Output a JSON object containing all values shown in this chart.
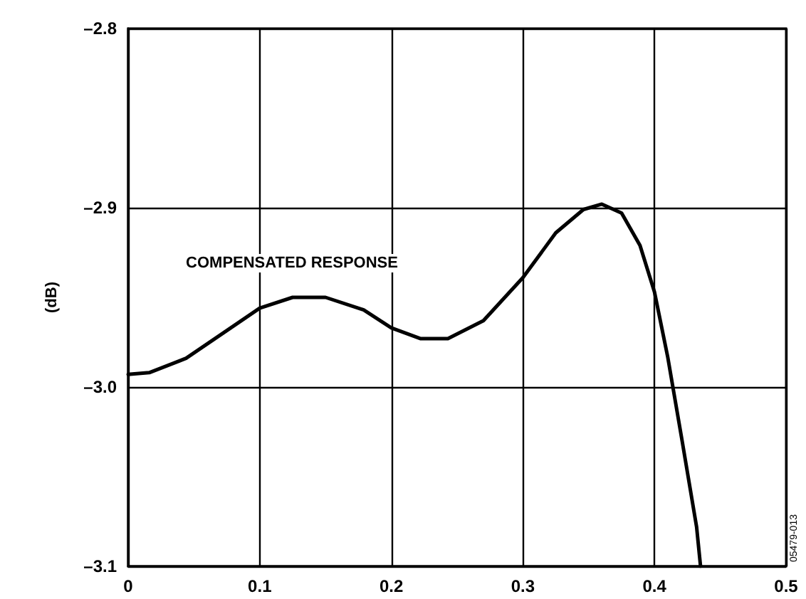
{
  "chart_data": {
    "type": "line",
    "ylabel": "(dB)",
    "annotations": [
      "COMPENSATED RESPONSE",
      "05479-013"
    ],
    "x": [
      0,
      0.016,
      0.044,
      0.076,
      0.1,
      0.125,
      0.15,
      0.179,
      0.2,
      0.222,
      0.243,
      0.27,
      0.3,
      0.325,
      0.346,
      0.36,
      0.375,
      0.389,
      0.4,
      0.41,
      0.421,
      0.432,
      0.435
    ],
    "values": [
      -2.993,
      -2.992,
      -2.984,
      -2.968,
      -2.956,
      -2.95,
      -2.95,
      -2.957,
      -2.967,
      -2.973,
      -2.973,
      -2.963,
      -2.939,
      -2.914,
      -2.901,
      -2.898,
      -2.903,
      -2.921,
      -2.947,
      -2.983,
      -3.03,
      -3.078,
      -3.1
    ],
    "color": "#000000",
    "xlim": [
      0,
      0.5
    ],
    "xticks": [
      0,
      0.1,
      0.2,
      0.3,
      0.4,
      0.5
    ],
    "ylim": [
      -3.1,
      -2.8
    ],
    "yticks": [
      {
        "value": -3.1,
        "label": "–3.1"
      },
      {
        "value": -3.0,
        "label": "–3.0"
      },
      {
        "value": -2.9,
        "label": "–2.9"
      },
      {
        "value": -2.8,
        "label": "–2.8"
      }
    ],
    "grid": true,
    "marker": "none",
    "line_style": "solid"
  }
}
